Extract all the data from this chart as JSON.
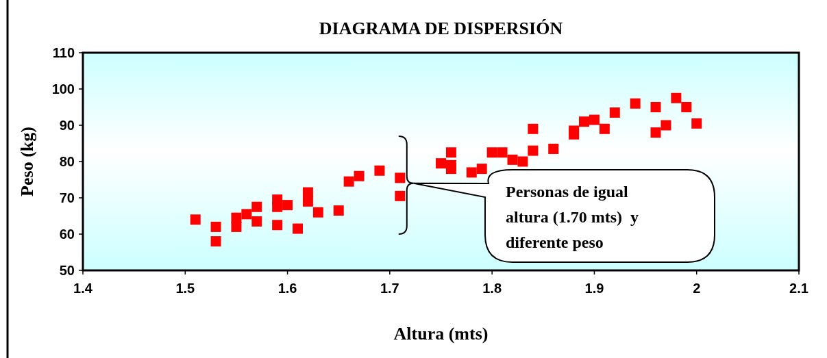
{
  "chart_data": {
    "type": "scatter",
    "title": "DIAGRAMA DE DISPERSIÓN",
    "xlabel": "Altura (mts)",
    "ylabel": "Peso (kg)",
    "annotations": [
      "Personas de igual altura (1.70 mts)  y diferente peso"
    ],
    "x": [
      1.51,
      1.53,
      1.53,
      1.55,
      1.55,
      1.56,
      1.57,
      1.57,
      1.59,
      1.59,
      1.59,
      1.6,
      1.61,
      1.62,
      1.62,
      1.63,
      1.65,
      1.66,
      1.67,
      1.69,
      1.71,
      1.71,
      1.75,
      1.76,
      1.76,
      1.76,
      1.78,
      1.79,
      1.8,
      1.81,
      1.82,
      1.83,
      1.84,
      1.84,
      1.86,
      1.88,
      1.88,
      1.89,
      1.9,
      1.91,
      1.92,
      1.94,
      1.96,
      1.96,
      1.97,
      1.98,
      1.99,
      2.0
    ],
    "series": [
      {
        "color": "#ff0000",
        "values": [
          64,
          62,
          58,
          64.5,
          62,
          65.5,
          67.5,
          63.5,
          69.5,
          67.5,
          62.5,
          68,
          61.5,
          71.5,
          69,
          66,
          66.5,
          74.5,
          76,
          77.5,
          75.5,
          70.5,
          79.5,
          82.5,
          79,
          78,
          77,
          78,
          82.5,
          82.5,
          80.5,
          80,
          89,
          83,
          83.5,
          87.5,
          88.5,
          91,
          91.5,
          89,
          93.5,
          96,
          95,
          88,
          90,
          97.5,
          95,
          90.5
        ]
      }
    ],
    "xlim": [
      1.4,
      2.1
    ],
    "xticks": [
      1.4,
      1.5,
      1.6,
      1.7,
      1.8,
      1.9,
      2,
      2.1
    ],
    "ylim": [
      50,
      110
    ],
    "yticks": [
      50,
      60,
      70,
      80,
      90,
      100,
      110
    ],
    "grid": false,
    "marker": "square"
  }
}
